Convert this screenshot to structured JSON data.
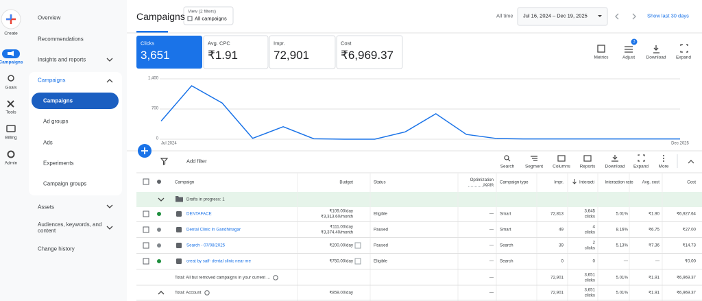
{
  "rail": [
    "Create",
    "Campaigns",
    "Goals",
    "Tools",
    "Billing",
    "Admin"
  ],
  "nav": {
    "items_top": [
      "Overview",
      "Recommendations",
      "Insights and reports"
    ],
    "section": "Campaigns",
    "section_items": [
      "Campaigns",
      "Ad groups",
      "Ads",
      "Experiments",
      "Campaign groups"
    ],
    "items_bottom": [
      "Assets",
      "Audiences, keywords, and content",
      "Change history"
    ]
  },
  "header": {
    "title": "Campaigns",
    "view_caption": "View (2 filters)",
    "view_value": "All campaigns",
    "range_label": "All time",
    "date_range": "Jul 16, 2024 – Dec 19, 2025",
    "shortcut": "Show last 30 days"
  },
  "metrics": [
    {
      "label": "Clicks",
      "value": "3,651"
    },
    {
      "label": "Avg. CPC",
      "value": "₹1.91"
    },
    {
      "label": "Impr.",
      "value": "72,901"
    },
    {
      "label": "Cost",
      "value": "₹6,969.37"
    }
  ],
  "chart_tools": [
    {
      "label": "Metrics"
    },
    {
      "label": "Adjust",
      "badge": "3"
    },
    {
      "label": "Download"
    },
    {
      "label": "Expand"
    }
  ],
  "chart": {
    "type": "line",
    "color": "#1a73e8",
    "grid": true,
    "categories": [
      "Jul 2024",
      null,
      null,
      null,
      null,
      null,
      null,
      null,
      null,
      null,
      null,
      null,
      null,
      null,
      null,
      null,
      null,
      "Dec 2025"
    ],
    "values": [
      420,
      1240,
      840,
      20,
      290,
      10,
      0,
      0,
      170,
      590,
      110,
      15,
      5,
      5,
      5,
      5,
      5,
      5
    ],
    "ylim": [
      0,
      1400
    ],
    "yticks": [
      0,
      700,
      {
        "value": 1400,
        "label": "1,400"
      }
    ]
  },
  "toolbar": {
    "filter": "Add filter",
    "tools": [
      "Search",
      "Segment",
      "Columns",
      "Reports",
      "Download",
      "Expand",
      "More"
    ]
  },
  "table": {
    "columns": [
      "Campaign",
      "Budget",
      "Status",
      "Optimization score",
      "Campaign type",
      "Impr.",
      "Interacti",
      "Interaction rate",
      "Avg. cost",
      "Cost"
    ],
    "draft": "Drafts in progress: 1",
    "rows": [
      {
        "dot": "#1e8e3e",
        "name": "DENTAFACE",
        "budget": [
          "₹109.00/day",
          "₹3,313.60/month"
        ],
        "status": "Eligible",
        "optimization": "—",
        "type": "Smart",
        "impr": "72,813",
        "interactions": [
          "3,645",
          "clicks"
        ],
        "rate": "5.01%",
        "avg_cost": "₹1.90",
        "cost": "₹6,927.64"
      },
      {
        "dot": "#80868b",
        "name": "Dental Clinic In Gandhinagar",
        "budget": [
          "₹111.00/day",
          "₹3,374.40/month"
        ],
        "status": "Paused",
        "optimization": "—",
        "type": "Smart",
        "impr": "49",
        "interactions": [
          "4",
          "clicks"
        ],
        "rate": "8.16%",
        "avg_cost": "₹6.75",
        "cost": "₹27.00"
      },
      {
        "dot": "#80868b",
        "name": "Search - 07/08/2025",
        "budget": [
          "₹200.00/day"
        ],
        "status": "Paused",
        "optimization": "—",
        "type": "Search",
        "impr": "39",
        "interactions": [
          "2",
          "clicks"
        ],
        "rate": "5.13%",
        "avg_cost": "₹7.36",
        "cost": "₹14.73"
      },
      {
        "dot": "#1e8e3e",
        "name": "creat by saif- dental clinic near me",
        "budget": [
          "₹750.00/day"
        ],
        "status": "Eligible",
        "optimization": "—",
        "type": "Search",
        "impr": "0",
        "interactions": [
          "0"
        ],
        "rate": "—",
        "avg_cost": "—",
        "cost": "₹0.00"
      }
    ],
    "totals": [
      {
        "label": "Total: All but removed campaigns in your current ...",
        "budget": [],
        "optimization": "—",
        "impr": "72,901",
        "interactions": [
          "3,651",
          "clicks"
        ],
        "rate": "5.01%",
        "avg_cost": "₹1.91",
        "cost": "₹6,969.37"
      },
      {
        "label": "Total: Account",
        "budget": [
          "₹859.00/day"
        ],
        "optimization": "—",
        "impr": "72,901",
        "interactions": [
          "3,651",
          "clicks"
        ],
        "rate": "5.01%",
        "avg_cost": "₹1.91",
        "cost": "₹6,969.37"
      }
    ]
  }
}
